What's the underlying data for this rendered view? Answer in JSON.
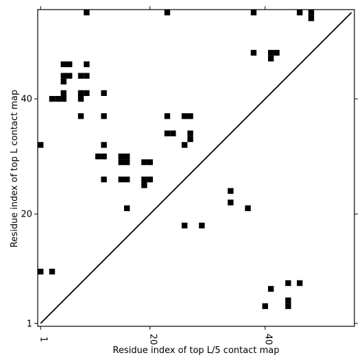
{
  "chart_data": {
    "type": "scatter",
    "title": "",
    "xlabel": "Residue index of top L/5 contact map",
    "ylabel": "Residue index of top L contact map",
    "xlim": [
      0.5,
      55.5
    ],
    "ylim": [
      0.5,
      55.5
    ],
    "xticks": [
      1,
      20,
      40
    ],
    "yticks": [
      1,
      20,
      40
    ],
    "grid": false,
    "diagonal": {
      "from": [
        1,
        1
      ],
      "to": [
        55,
        55
      ]
    },
    "series": [
      {
        "marker": "square",
        "color": "#000000",
        "points": [
          [
            9,
            55
          ],
          [
            23,
            55
          ],
          [
            38,
            55
          ],
          [
            46,
            55
          ],
          [
            48,
            55
          ],
          [
            48,
            54
          ],
          [
            38,
            48
          ],
          [
            41,
            48
          ],
          [
            42,
            48
          ],
          [
            41,
            47
          ],
          [
            5,
            46
          ],
          [
            6,
            46
          ],
          [
            9,
            46
          ],
          [
            5,
            44
          ],
          [
            6,
            44
          ],
          [
            8,
            44
          ],
          [
            9,
            44
          ],
          [
            5,
            43
          ],
          [
            5,
            41
          ],
          [
            8,
            41
          ],
          [
            9,
            41
          ],
          [
            12,
            41
          ],
          [
            3,
            40
          ],
          [
            4,
            40
          ],
          [
            5,
            40
          ],
          [
            8,
            40
          ],
          [
            8,
            37
          ],
          [
            12,
            37
          ],
          [
            23,
            37
          ],
          [
            26,
            37
          ],
          [
            27,
            37
          ],
          [
            23,
            34
          ],
          [
            24,
            34
          ],
          [
            27,
            34
          ],
          [
            27,
            33
          ],
          [
            1,
            32
          ],
          [
            12,
            32
          ],
          [
            26,
            32
          ],
          [
            11,
            30
          ],
          [
            12,
            30
          ],
          [
            15,
            30
          ],
          [
            16,
            30
          ],
          [
            15,
            29
          ],
          [
            16,
            29
          ],
          [
            19,
            29
          ],
          [
            20,
            29
          ],
          [
            12,
            26
          ],
          [
            15,
            26
          ],
          [
            16,
            26
          ],
          [
            19,
            26
          ],
          [
            20,
            26
          ],
          [
            19,
            25
          ],
          [
            34,
            24
          ],
          [
            34,
            22
          ],
          [
            37,
            21
          ],
          [
            16,
            21
          ],
          [
            26,
            18
          ],
          [
            29,
            18
          ],
          [
            1,
            10
          ],
          [
            3,
            10
          ],
          [
            44,
            8
          ],
          [
            46,
            8
          ],
          [
            41,
            7
          ],
          [
            44,
            5
          ],
          [
            44,
            4
          ],
          [
            40,
            4
          ]
        ]
      }
    ]
  }
}
